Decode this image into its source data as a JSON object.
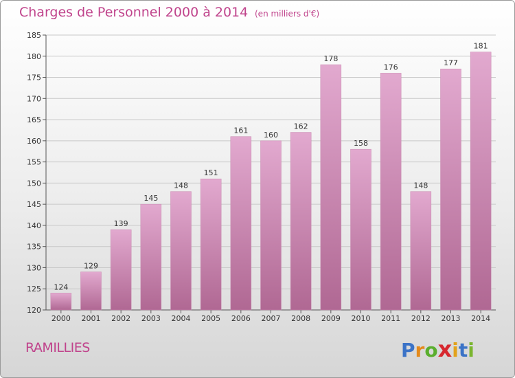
{
  "header": {
    "title": "Charges de Personnel 2000 à 2014",
    "subtitle": "(en milliers d'€)"
  },
  "footer": {
    "commune": "RAMILLIES",
    "logo_text": "Proxiti"
  },
  "colors": {
    "title": "#c0448c",
    "bar_top": "#e2a9cf",
    "bar_bottom": "#b06893",
    "logo_letters": [
      "#3b73c7",
      "#e48a1c",
      "#5aae2e",
      "#d7282f",
      "#e2a21c",
      "#3b73c7",
      "#7ab52f"
    ]
  },
  "chart_data": {
    "type": "bar",
    "title": "Charges de Personnel 2000 à 2014",
    "unit": "(en milliers d'€)",
    "categories": [
      "2000",
      "2001",
      "2002",
      "2003",
      "2004",
      "2005",
      "2006",
      "2007",
      "2008",
      "2009",
      "2010",
      "2011",
      "2012",
      "2013",
      "2014"
    ],
    "values": [
      124,
      129,
      139,
      145,
      148,
      151,
      161,
      160,
      162,
      178,
      158,
      176,
      148,
      177,
      181
    ],
    "ylim": [
      120,
      185
    ],
    "yticks": [
      120,
      125,
      130,
      135,
      140,
      145,
      150,
      155,
      160,
      165,
      170,
      175,
      180,
      185
    ],
    "grid": true,
    "data_labels": true
  }
}
